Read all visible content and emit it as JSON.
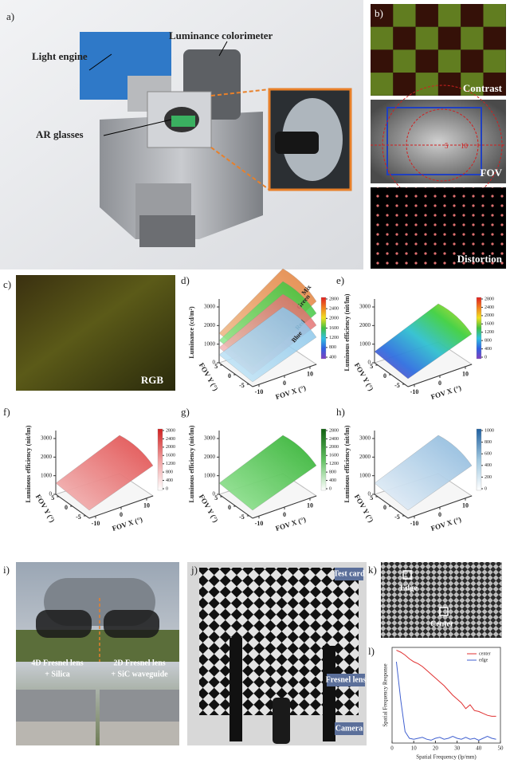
{
  "panels": {
    "a": {
      "label": "a)",
      "texts": [
        "Luminance colorimeter",
        "Light engine",
        "AR glasses"
      ]
    },
    "b": {
      "label": "b)",
      "captions": [
        "Contrast",
        "FOV",
        "Distortion"
      ],
      "fov_marks": [
        "5",
        "10"
      ]
    },
    "c": {
      "label": "c)",
      "caption": "RGB"
    },
    "plots": [
      {
        "label": "d)",
        "zlabel": "Luminance (cd/m²)",
        "zticks": [
          0,
          1000,
          2000,
          3000
        ],
        "xlabel": "FOV X (°)",
        "xticks": [
          -10,
          0,
          10
        ],
        "ylabel": "FOV Y (°)",
        "yticks": [
          5,
          0,
          -5
        ],
        "cbar": [
          2800,
          2400,
          2000,
          1600,
          1200,
          800,
          400
        ],
        "surfaces": [
          "Mix",
          "Green",
          "Red",
          "Blue"
        ]
      },
      {
        "label": "e)",
        "zlabel": "Luminous efficiency (nit/lm)",
        "zticks": [
          0,
          1000,
          2000,
          3000
        ],
        "xlabel": "FOV X (°)",
        "xticks": [
          -10,
          0,
          10
        ],
        "ylabel": "FOV Y (°)",
        "yticks": [
          5,
          0,
          -5
        ],
        "cbar": [
          2800,
          2400,
          2000,
          1600,
          1200,
          800,
          400,
          0
        ]
      },
      {
        "label": "f)",
        "zlabel": "Luminous efficiency (nit/lm)",
        "zticks": [
          0,
          1000,
          2000,
          3000
        ],
        "xlabel": "FOV X (°)",
        "xticks": [
          -10,
          0,
          10
        ],
        "ylabel": "FOV Y (°)",
        "yticks": [
          5,
          0,
          -5
        ],
        "cbar": [
          2800,
          2400,
          2000,
          1600,
          1200,
          800,
          400,
          0
        ]
      },
      {
        "label": "g)",
        "zlabel": "Luminous efficiency (nit/lm)",
        "zticks": [
          0,
          1000,
          2000,
          3000
        ],
        "xlabel": "FOV X (°)",
        "xticks": [
          -10,
          0,
          10
        ],
        "ylabel": "FOV Y (°)",
        "yticks": [
          5,
          0,
          -5
        ],
        "cbar": [
          2800,
          2400,
          2000,
          1600,
          1200,
          800,
          400,
          0
        ]
      },
      {
        "label": "h)",
        "zlabel": "Luminous efficiency (nit/lm)",
        "zticks": [
          0,
          1000,
          2000,
          3000
        ],
        "xlabel": "FOV X (°)",
        "xticks": [
          -10,
          0,
          10
        ],
        "ylabel": "FOV Y (°)",
        "yticks": [
          5,
          0,
          -5
        ],
        "cbar": [
          1000,
          800,
          600,
          400,
          200,
          0
        ]
      }
    ],
    "i": {
      "label": "i)",
      "notes": [
        [
          "4D Fresnel lens",
          "+ Silica"
        ],
        [
          "2D Fresnel lens",
          "+ SiC waveguide"
        ]
      ]
    },
    "j": {
      "label": "j)",
      "tags": [
        "Test card",
        "Fresnel lens",
        "Camera"
      ]
    },
    "k": {
      "label": "k)",
      "boxes": [
        "Edge",
        "Center"
      ]
    },
    "l": {
      "label": "l)"
    }
  },
  "chart_data": {
    "type": "line",
    "xlabel": "Spatial Frequency (lp/mm)",
    "ylabel": "Spatial Frequency Response",
    "x": [
      2,
      4,
      6,
      8,
      10,
      12,
      14,
      16,
      18,
      20,
      22,
      24,
      26,
      28,
      30,
      32,
      34,
      36,
      38,
      40,
      42,
      44,
      46,
      48
    ],
    "series": [
      {
        "name": "center",
        "color": "#e03030",
        "values": [
          0.97,
          0.95,
          0.92,
          0.88,
          0.85,
          0.83,
          0.8,
          0.76,
          0.72,
          0.68,
          0.64,
          0.6,
          0.55,
          0.5,
          0.46,
          0.42,
          0.36,
          0.4,
          0.34,
          0.33,
          0.31,
          0.29,
          0.28,
          0.28
        ]
      },
      {
        "name": "edge",
        "color": "#4060d0",
        "values": [
          0.85,
          0.45,
          0.12,
          0.05,
          0.04,
          0.05,
          0.06,
          0.04,
          0.03,
          0.05,
          0.06,
          0.04,
          0.05,
          0.07,
          0.05,
          0.04,
          0.06,
          0.04,
          0.05,
          0.03,
          0.05,
          0.07,
          0.05,
          0.04
        ]
      }
    ],
    "xlim": [
      0,
      50
    ],
    "xticks": [
      0,
      10,
      20,
      30,
      40,
      50
    ],
    "ylim": [
      0,
      1
    ],
    "legend": "upper right"
  }
}
